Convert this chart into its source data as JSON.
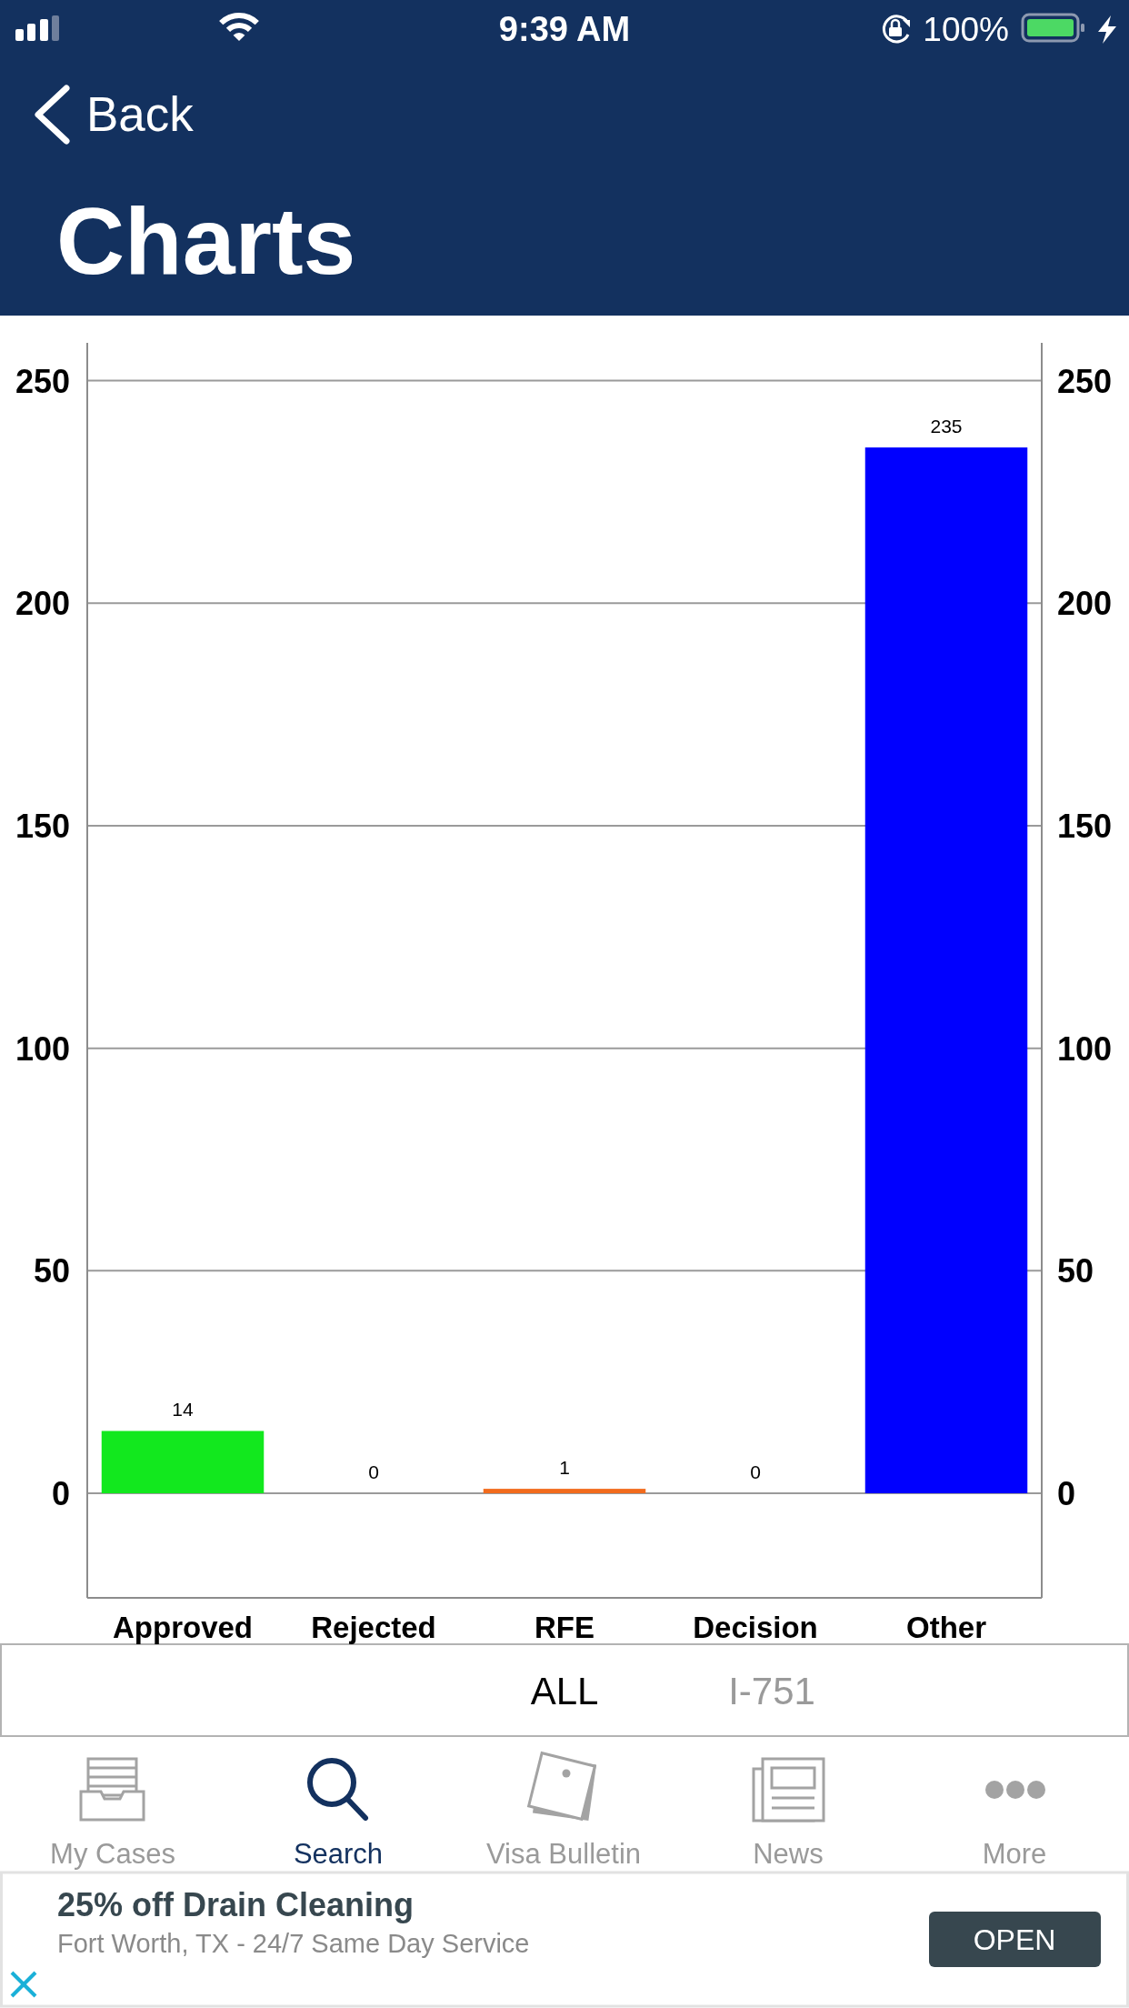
{
  "chart_data": {
    "type": "bar",
    "title": "Charts",
    "categories": [
      "Approved",
      "Rejected",
      "RFE",
      "Decision",
      "Other"
    ],
    "values": [
      14,
      0,
      1,
      0,
      235
    ],
    "colors": [
      "#12e81e",
      null,
      "#f26b1d",
      null,
      "#0000ff"
    ],
    "ylim": [
      -23.5,
      258.5
    ],
    "yticks": [
      0,
      50,
      100,
      150,
      200,
      250
    ],
    "y2lim": [
      -23.5,
      258.5
    ],
    "y2ticks": [
      0,
      50,
      100,
      150,
      200,
      250
    ],
    "grid": "y",
    "data_labels": true,
    "annotations": [
      "9:39 AM",
      "100%",
      "Back",
      "ALL",
      "I-751",
      "My Cases",
      "Search",
      "Visa Bulletin",
      "News",
      "More",
      "25% off Drain Cleaning",
      "Fort Worth, TX - 24/7 Same Day Service",
      "OPEN"
    ]
  }
}
